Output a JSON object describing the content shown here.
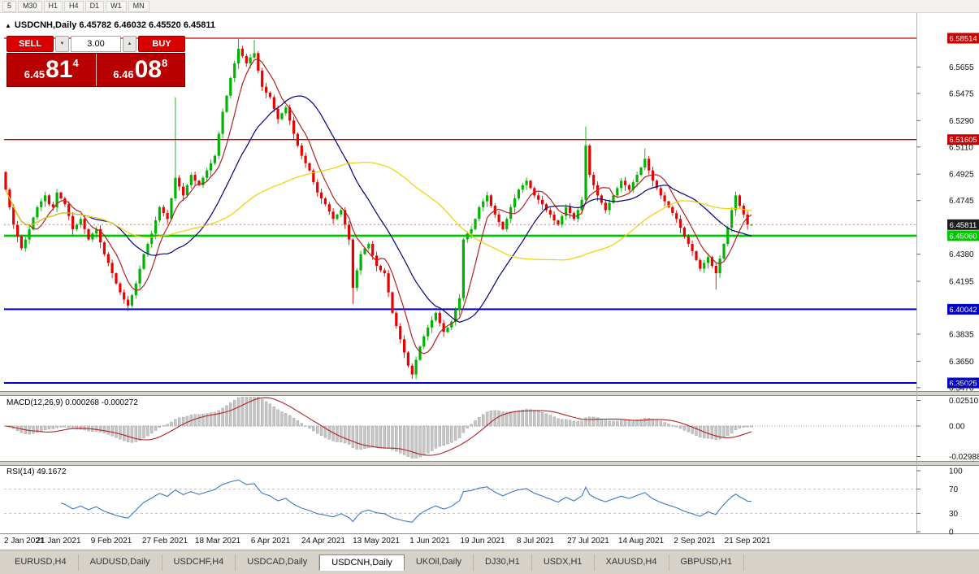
{
  "icons": {
    "panel_toggle": "▲",
    "spin_up": "▲",
    "spin_down": "▼"
  },
  "period_toolbar": {
    "items": [
      "5",
      "M30",
      "H1",
      "H4",
      "D1",
      "W1",
      "MN"
    ]
  },
  "chart": {
    "title": "USDCNH,Daily 6.45782 6.46032 6.45520 6.45811",
    "symbol": "USDCNH,Daily",
    "ohlc": {
      "open": "6.45782",
      "high": "6.46032",
      "low": "6.45520",
      "close": "6.45811"
    }
  },
  "trade_panel": {
    "sell_label": "SELL",
    "buy_label": "BUY",
    "volume": "3.00",
    "sell_price": {
      "prefix": "6.45",
      "main": "81",
      "sup": "4"
    },
    "buy_price": {
      "prefix": "6.46",
      "main": "08",
      "sup": "8"
    }
  },
  "macd": {
    "label": "MACD(12,26,9) 0.000268 -0.000272"
  },
  "rsi": {
    "label": "RSI(14) 49.1672"
  },
  "price_axis": {
    "ticks": [
      6.5655,
      6.5475,
      6.529,
      6.511,
      6.4925,
      6.4745,
      6.438,
      6.4195,
      6.3835,
      6.365,
      6.347
    ],
    "lines": [
      {
        "value": 6.58514,
        "color": "#cc0000",
        "width": 1.3,
        "name": "resistance-line-1"
      },
      {
        "value": 6.51605,
        "color": "#cc0000",
        "width": 1.3,
        "name": "resistance-line-2"
      },
      {
        "value": 6.4506,
        "color": "#00c800",
        "width": 2.6,
        "name": "support-line-green"
      },
      {
        "value": 6.40042,
        "color": "#0000cc",
        "width": 2.0,
        "name": "support-line-blue-1"
      },
      {
        "value": 6.35025,
        "color": "#0000cc",
        "width": 2.0,
        "name": "support-line-blue-2"
      }
    ],
    "current": {
      "value": 6.45811,
      "box_color": "#1c1c1c"
    }
  },
  "macd_axis": [
    {
      "v": 0.0251,
      "label": "0.02510"
    },
    {
      "v": 0.0,
      "label": "0.00"
    },
    {
      "v": -0.02988,
      "label": "-0.02988"
    }
  ],
  "rsi_axis": [
    {
      "v": 100,
      "label": "100"
    },
    {
      "v": 70,
      "label": "70"
    },
    {
      "v": 30,
      "label": "30"
    },
    {
      "v": 0,
      "label": "0"
    }
  ],
  "tabs": {
    "items": [
      "EURUSD,H4",
      "AUDUSD,Daily",
      "USDCHF,H4",
      "USDCAD,Daily",
      "USDCNH,Daily",
      "UKOil,Daily",
      "DJ30,H1",
      "USDX,H1",
      "XAUUSD,H4",
      "GBPUSD,H1"
    ],
    "active": "USDCNH,Daily"
  },
  "chart_data": {
    "type": "candlestick",
    "symbol": "USDCNH",
    "timeframe": "Daily",
    "title": "USDCNH,Daily",
    "current_bar": {
      "open": 6.45782,
      "high": 6.46032,
      "low": 6.4552,
      "close": 6.45811
    },
    "y_range": [
      6.3464,
      6.589
    ],
    "x_labels": [
      "2 Jan 2021",
      "21 Jan 2021",
      "9 Feb 2021",
      "27 Feb 2021",
      "18 Mar 2021",
      "6 Apr 2021",
      "24 Apr 2021",
      "13 May 2021",
      "1 Jun 2021",
      "19 Jun 2021",
      "8 Jul 2021",
      "27 Jul 2021",
      "14 Aug 2021",
      "2 Sep 2021",
      "21 Sep 2021"
    ],
    "first_open": 6.494,
    "closes": [
      6.482,
      6.47,
      6.458,
      6.45,
      6.442,
      6.448,
      6.455,
      6.463,
      6.47,
      6.474,
      6.478,
      6.472,
      6.47,
      6.48,
      6.476,
      6.472,
      6.464,
      6.455,
      6.458,
      6.462,
      6.455,
      6.448,
      6.452,
      6.455,
      6.446,
      6.438,
      6.432,
      6.425,
      6.418,
      6.412,
      6.407,
      6.403,
      6.41,
      6.418,
      6.428,
      6.438,
      6.445,
      6.452,
      6.461,
      6.47,
      6.466,
      6.462,
      6.476,
      6.49,
      6.484,
      6.478,
      6.485,
      6.492,
      6.488,
      6.485,
      6.49,
      6.495,
      6.5,
      6.505,
      6.52,
      6.535,
      6.546,
      6.558,
      6.568,
      6.578,
      6.573,
      6.568,
      6.572,
      6.575,
      6.563,
      6.552,
      6.548,
      6.545,
      6.537,
      6.53,
      6.534,
      6.538,
      6.529,
      6.52,
      6.512,
      6.505,
      6.5,
      6.495,
      6.487,
      6.48,
      6.476,
      6.472,
      6.467,
      6.462,
      6.465,
      6.468,
      6.458,
      6.448,
      6.415,
      6.427,
      6.438,
      6.442,
      6.445,
      6.437,
      6.43,
      6.427,
      6.425,
      6.412,
      6.398,
      6.389,
      6.38,
      6.371,
      6.362,
      6.356,
      6.366,
      6.375,
      6.382,
      6.388,
      6.393,
      6.398,
      6.391,
      6.385,
      6.388,
      6.392,
      6.4,
      6.408,
      6.448,
      6.452,
      6.455,
      6.462,
      6.47,
      6.474,
      6.478,
      6.471,
      6.465,
      6.46,
      6.455,
      6.462,
      6.47,
      6.476,
      6.482,
      6.485,
      6.488,
      6.483,
      6.478,
      6.475,
      6.472,
      6.468,
      6.465,
      6.461,
      6.458,
      6.464,
      6.47,
      6.466,
      6.462,
      6.468,
      6.475,
      6.512,
      6.492,
      6.485,
      6.478,
      6.473,
      6.468,
      6.473,
      6.478,
      6.483,
      6.488,
      6.485,
      6.482,
      6.487,
      6.492,
      6.497,
      6.503,
      6.495,
      6.488,
      6.483,
      6.478,
      6.474,
      6.47,
      6.466,
      6.462,
      6.456,
      6.45,
      6.445,
      6.44,
      6.434,
      6.428,
      6.432,
      6.436,
      6.43,
      6.425,
      6.435,
      6.445,
      6.456,
      6.468,
      6.478,
      6.471,
      6.465,
      6.458,
      6.4581
    ],
    "wick_overrides": {
      "43": {
        "high": 6.545
      },
      "59": {
        "high": 6.5851
      },
      "60": {
        "high": 6.58
      },
      "63": {
        "high": 6.584
      },
      "88": {
        "low": 6.404
      },
      "103": {
        "low": 6.353
      },
      "116": {
        "low": 6.406
      },
      "147": {
        "high": 6.525
      },
      "162": {
        "high": 6.51
      },
      "180": {
        "low": 6.414
      }
    },
    "levels": {
      "resistance": [
        6.58514,
        6.51605
      ],
      "pivot_green": 6.4506,
      "support": [
        6.40042,
        6.35025
      ]
    },
    "moving_averages": [
      {
        "period": 7,
        "color": "#b22222"
      },
      {
        "period": 22,
        "color": "#000080"
      },
      {
        "period": 56,
        "color": "#f0d000"
      }
    ],
    "macd": {
      "fast": 12,
      "slow": 26,
      "signal": 9,
      "current_main": 0.000268,
      "current_signal": -0.000272,
      "axis_range": [
        -0.02988,
        0.0251
      ]
    },
    "rsi": {
      "period": 14,
      "current": 49.1672,
      "levels": [
        70,
        30
      ]
    },
    "up_color": "#00b300",
    "down_color": "#e60000"
  }
}
